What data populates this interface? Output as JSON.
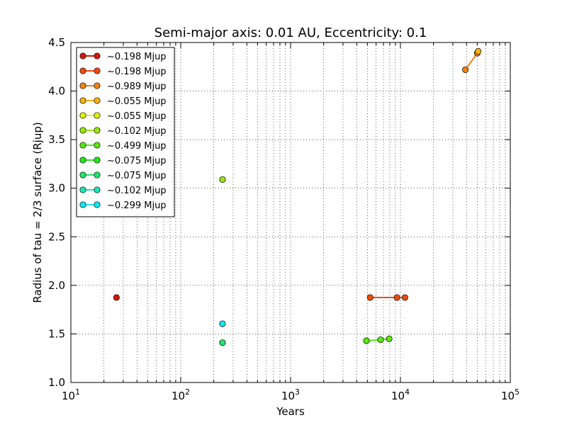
{
  "chart_data": {
    "type": "scatter",
    "title": "Semi-major axis: 0.01 AU, Eccentricity: 0.1",
    "xlabel": "Years",
    "ylabel": "Radius of tau = 2/3 surface (Rjup)",
    "xscale": "log",
    "xlim": [
      10,
      100000
    ],
    "ylim": [
      1.0,
      4.5
    ],
    "grid": true,
    "legend_position": "upper-left",
    "x_ticks": [
      {
        "value": 10,
        "base": "10",
        "exp": "1"
      },
      {
        "value": 100,
        "base": "10",
        "exp": "2"
      },
      {
        "value": 1000,
        "base": "10",
        "exp": "3"
      },
      {
        "value": 10000,
        "base": "10",
        "exp": "4"
      },
      {
        "value": 100000,
        "base": "10",
        "exp": "5"
      }
    ],
    "y_ticks": [
      {
        "value": 1.0,
        "label": "1.0"
      },
      {
        "value": 1.5,
        "label": "1.5"
      },
      {
        "value": 2.0,
        "label": "2.0"
      },
      {
        "value": 2.5,
        "label": "2.5"
      },
      {
        "value": 3.0,
        "label": "3.0"
      },
      {
        "value": 3.5,
        "label": "3.5"
      },
      {
        "value": 4.0,
        "label": "4.0"
      },
      {
        "value": 4.5,
        "label": "4.5"
      }
    ],
    "series": [
      {
        "name": "~0.198 Mjup",
        "color": "#d11a0a",
        "x": [
          26
        ],
        "y": [
          1.875
        ]
      },
      {
        "name": "~0.198 Mjup",
        "color": "#f04a10",
        "x": [
          5300,
          9300,
          11000
        ],
        "y": [
          1.875,
          1.875,
          1.875
        ]
      },
      {
        "name": "~0.989 Mjup",
        "color": "#f0820f",
        "x": [
          39000,
          50000
        ],
        "y": [
          4.22,
          4.39
        ]
      },
      {
        "name": "~0.055 Mjup",
        "color": "#f8b012",
        "x": [
          51000
        ],
        "y": [
          4.41
        ]
      },
      {
        "name": "~0.055 Mjup",
        "color": "#e2f00c",
        "x": [],
        "y": []
      },
      {
        "name": "~0.102 Mjup",
        "color": "#96e614",
        "x": [
          240
        ],
        "y": [
          3.09
        ]
      },
      {
        "name": "~0.499 Mjup",
        "color": "#5ae612",
        "x": [
          4900,
          6600,
          7900
        ],
        "y": [
          1.43,
          1.44,
          1.45
        ]
      },
      {
        "name": "~0.075 Mjup",
        "color": "#28e61e",
        "x": [],
        "y": []
      },
      {
        "name": "~0.075 Mjup",
        "color": "#22e66a",
        "x": [
          240
        ],
        "y": [
          1.41
        ]
      },
      {
        "name": "~0.102 Mjup",
        "color": "#18e6b4",
        "x": [],
        "y": []
      },
      {
        "name": "~0.299 Mjup",
        "color": "#14e6f0",
        "x": [
          240
        ],
        "y": [
          1.605
        ]
      }
    ]
  }
}
